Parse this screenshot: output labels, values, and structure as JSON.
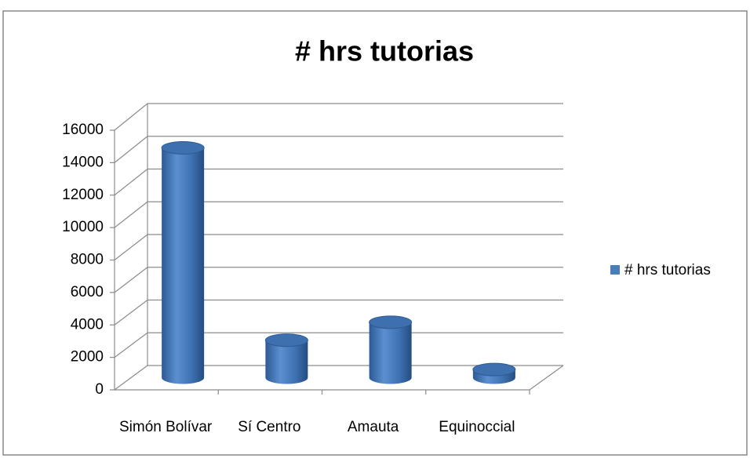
{
  "chart_data": {
    "type": "bar",
    "title": "# hrs tutorias",
    "categories": [
      "Simón Bolívar",
      "Sí Centro",
      "Amauta",
      "Equinoccial"
    ],
    "series": [
      {
        "name": "# hrs tutorias",
        "color": "#4a7ebb",
        "values": [
          14100,
          2300,
          3400,
          500
        ]
      }
    ],
    "ylim": [
      0,
      16000
    ],
    "yticks": [
      0,
      2000,
      4000,
      6000,
      8000,
      10000,
      12000,
      14000,
      16000
    ],
    "grid": true,
    "legend": "right",
    "three_d": true
  }
}
